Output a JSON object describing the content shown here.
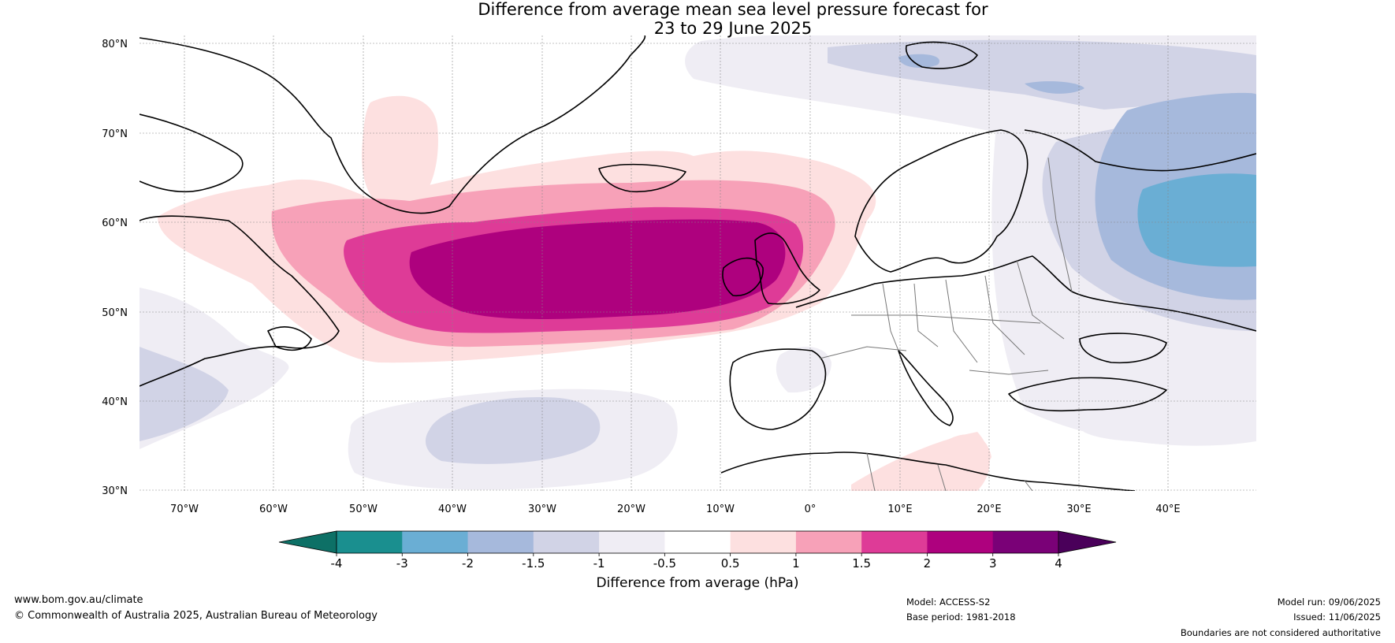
{
  "title": {
    "line1": "Difference from average mean sea level pressure forecast for",
    "line2": "23 to 29 June 2025"
  },
  "map": {
    "lat_ticks": [
      "80°N",
      "70°N",
      "60°N",
      "50°N",
      "40°N",
      "30°N"
    ],
    "lon_ticks": [
      "70°W",
      "60°W",
      "50°W",
      "40°W",
      "30°W",
      "20°W",
      "10°W",
      "0°",
      "10°E",
      "20°E",
      "30°E",
      "40°E"
    ],
    "anomaly_regions": [
      {
        "name": "North Atlantic positive anomaly",
        "peak_hPa": 3,
        "center": "55°N 25°W"
      },
      {
        "name": "Western Russia negative anomaly",
        "peak_hPa": -2,
        "center": "58°N 45°E"
      },
      {
        "name": "Central Atlantic negative anomaly",
        "peak_hPa": -1.5,
        "center": "38°N 35°W"
      }
    ]
  },
  "colorbar": {
    "label": "Difference from average (hPa)",
    "ticks": [
      "-4",
      "-3",
      "-2",
      "-1.5",
      "-1",
      "-0.5",
      "0.5",
      "1",
      "1.5",
      "2",
      "3",
      "4"
    ],
    "colors": [
      "#1a8f8f",
      "#6aaed4",
      "#a6b9dc",
      "#d1d3e6",
      "#efedf4",
      "#ffffff",
      "#fde0e0",
      "#f7a1b8",
      "#de3b97",
      "#ae017e",
      "#7a0177"
    ],
    "under_color": "#0d7066",
    "over_color": "#4a005a"
  },
  "footer": {
    "website": "www.bom.gov.au/climate",
    "copyright": "© Commonwealth of Australia 2025, Australian Bureau of Meteorology",
    "model": "Model: ACCESS-S2",
    "base_period": "Base period: 1981-2018",
    "model_run": "Model run: 09/06/2025",
    "issued": "Issued: 11/06/2025",
    "disclaimer": "Boundaries are not considered authoritative"
  }
}
